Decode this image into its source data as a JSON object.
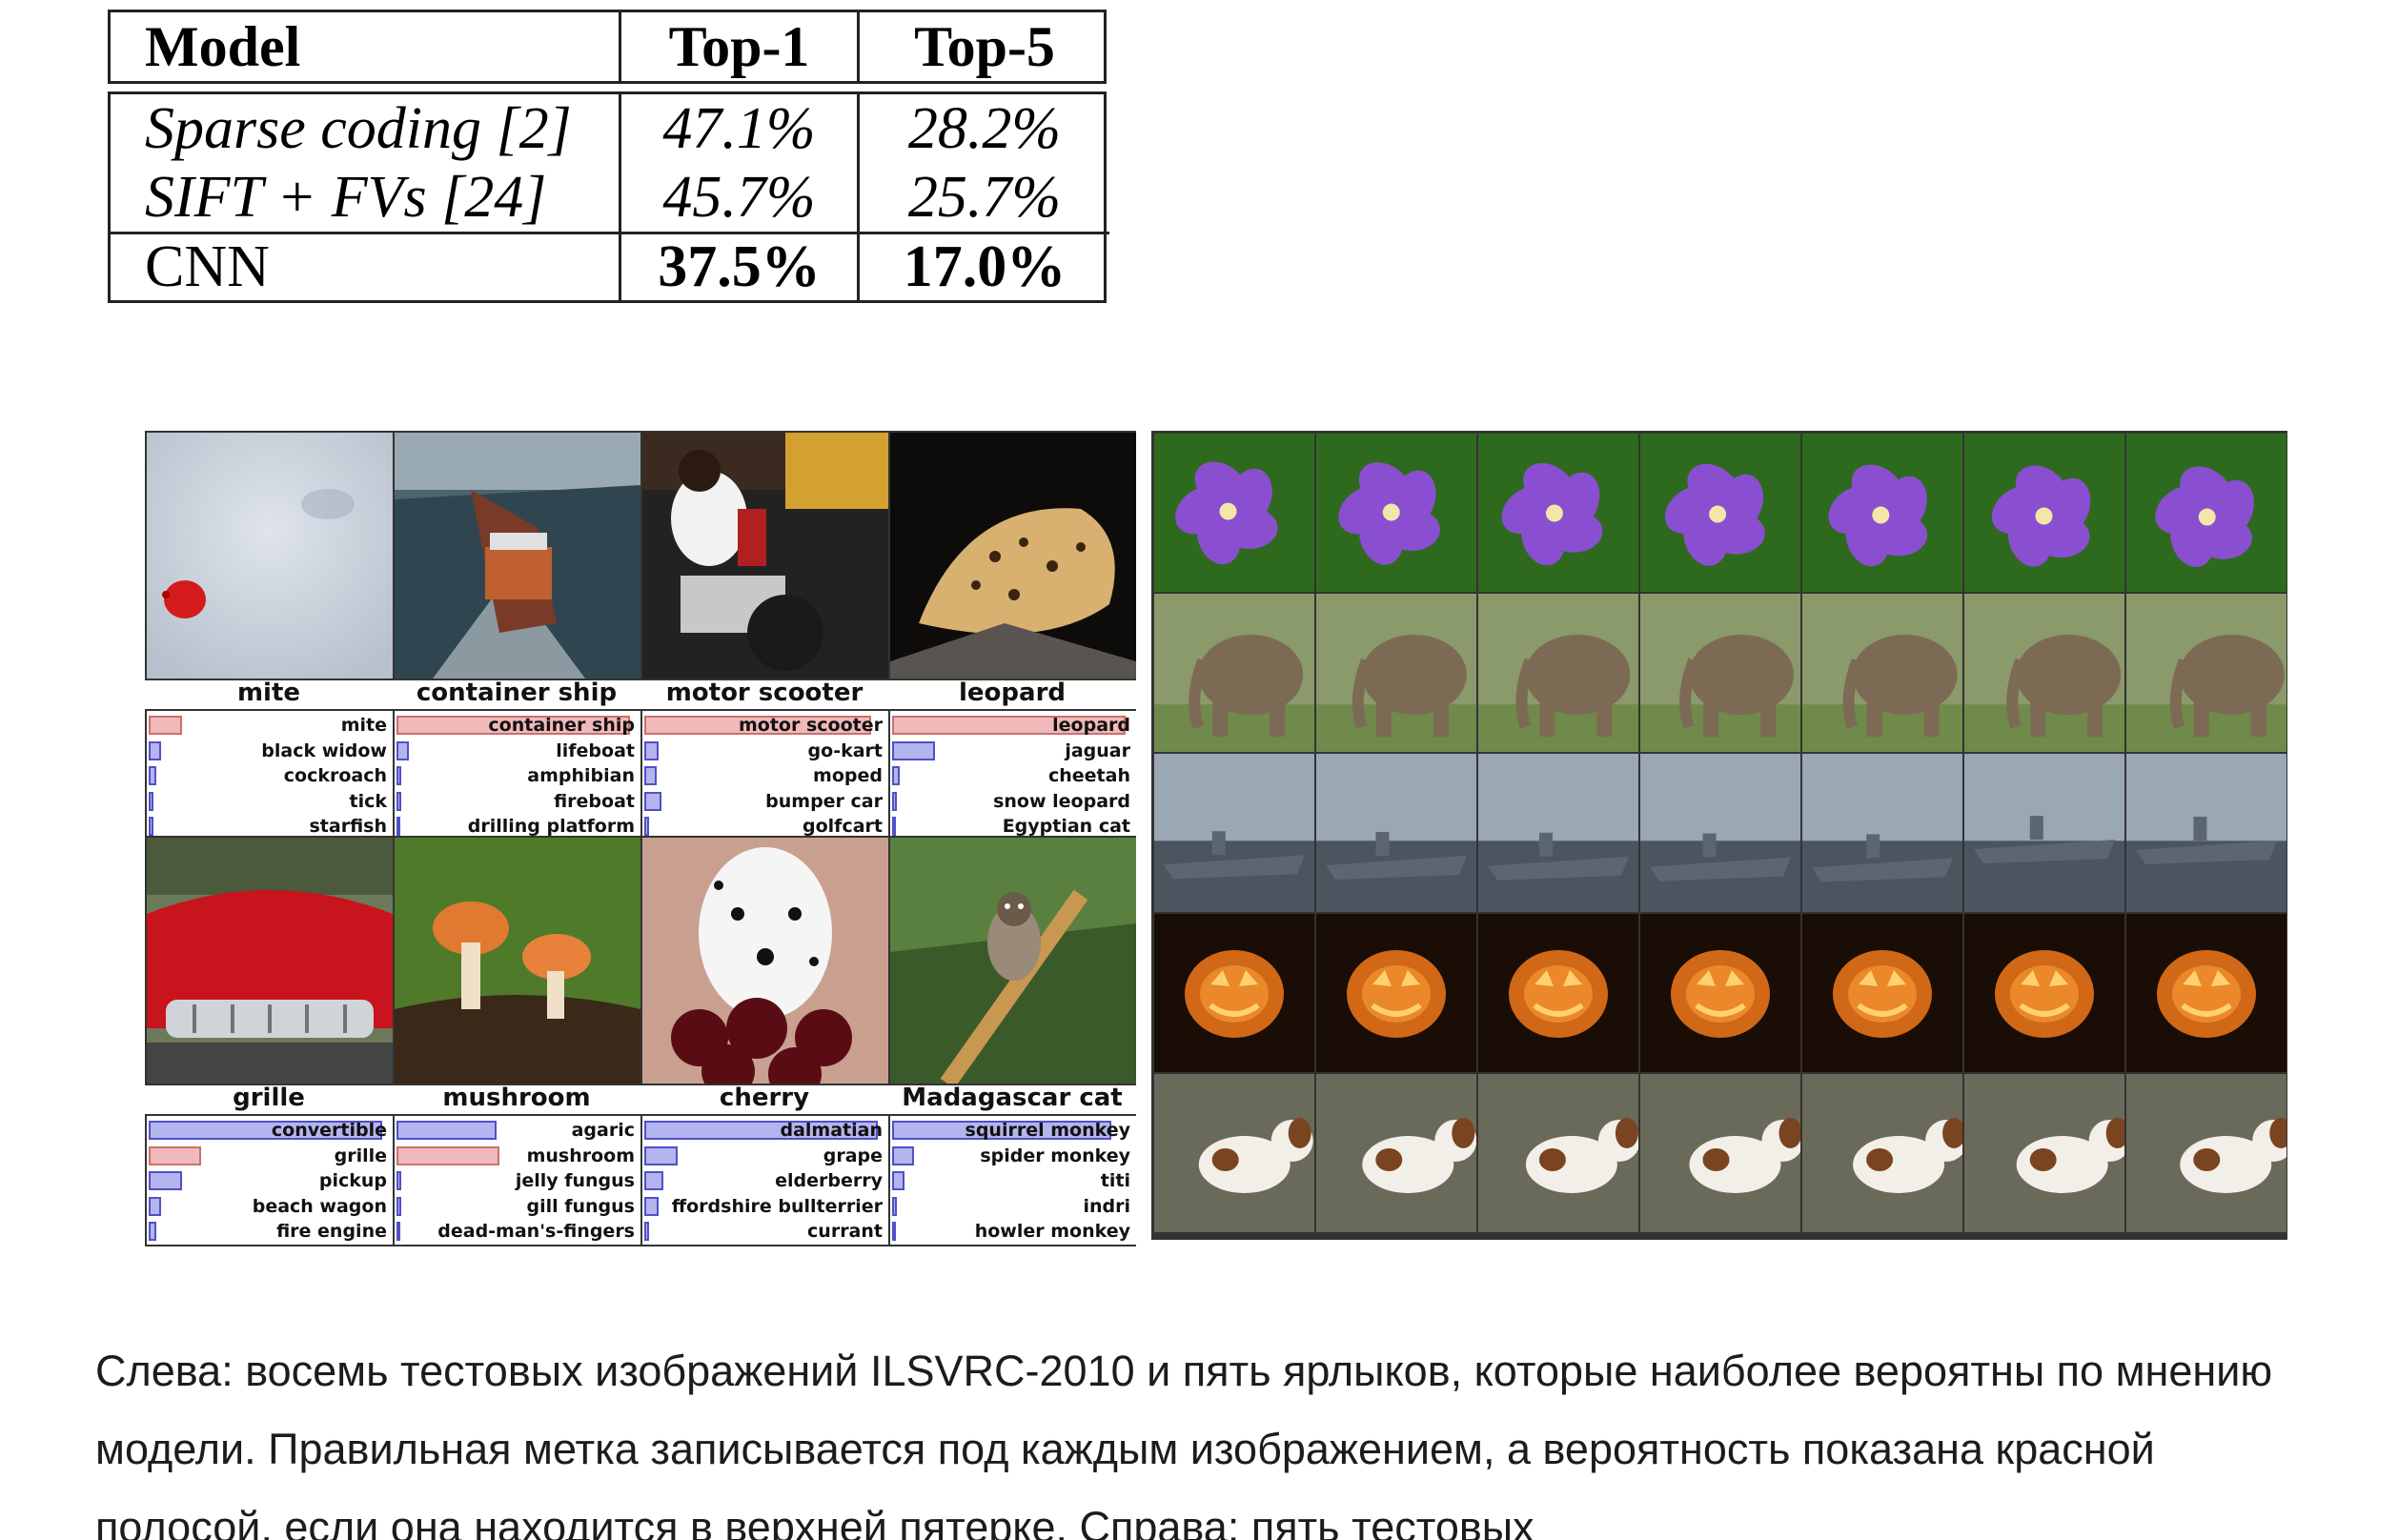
{
  "table": {
    "headers": [
      "Model",
      "Top-1",
      "Top-5"
    ],
    "rows": [
      {
        "model": "Sparse coding [2]",
        "top1": "47.1%",
        "top5": "28.2%"
      },
      {
        "model": "SIFT + FVs [24]",
        "top1": "45.7%",
        "top5": "25.7%"
      },
      {
        "model": "CNN",
        "top1": "37.5%",
        "top5": "17.0%"
      }
    ]
  },
  "left_figure": {
    "top": [
      {
        "label": "mite",
        "predictions": [
          {
            "name": "mite",
            "p": 0.14,
            "correct": true
          },
          {
            "name": "black widow",
            "p": 0.05
          },
          {
            "name": "cockroach",
            "p": 0.03
          },
          {
            "name": "tick",
            "p": 0.02
          },
          {
            "name": "starfish",
            "p": 0.02
          }
        ]
      },
      {
        "label": "container ship",
        "predictions": [
          {
            "name": "container ship",
            "p": 0.98,
            "correct": true
          },
          {
            "name": "lifeboat",
            "p": 0.05
          },
          {
            "name": "amphibian",
            "p": 0.02
          },
          {
            "name": "fireboat",
            "p": 0.02
          },
          {
            "name": "drilling platform",
            "p": 0.01
          }
        ]
      },
      {
        "label": "motor scooter",
        "predictions": [
          {
            "name": "motor scooter",
            "p": 0.95,
            "correct": true
          },
          {
            "name": "go-kart",
            "p": 0.06
          },
          {
            "name": "moped",
            "p": 0.05
          },
          {
            "name": "bumper car",
            "p": 0.07
          },
          {
            "name": "golfcart",
            "p": 0.02
          }
        ]
      },
      {
        "label": "leopard",
        "predictions": [
          {
            "name": "leopard",
            "p": 0.98,
            "correct": true
          },
          {
            "name": "jaguar",
            "p": 0.18
          },
          {
            "name": "cheetah",
            "p": 0.03
          },
          {
            "name": "snow leopard",
            "p": 0.02
          },
          {
            "name": "Egyptian cat",
            "p": 0.01
          }
        ]
      }
    ],
    "bottom": [
      {
        "label": "grille",
        "predictions": [
          {
            "name": "convertible",
            "p": 0.98
          },
          {
            "name": "grille",
            "p": 0.22,
            "correct": true
          },
          {
            "name": "pickup",
            "p": 0.14
          },
          {
            "name": "beach wagon",
            "p": 0.05
          },
          {
            "name": "fire engine",
            "p": 0.03
          }
        ]
      },
      {
        "label": "mushroom",
        "predictions": [
          {
            "name": "agaric",
            "p": 0.42
          },
          {
            "name": "mushroom",
            "p": 0.43,
            "correct": true
          },
          {
            "name": "jelly fungus",
            "p": 0.02
          },
          {
            "name": "gill fungus",
            "p": 0.02
          },
          {
            "name": "dead-man's-fingers",
            "p": 0.01
          }
        ]
      },
      {
        "label": "cherry",
        "predictions": [
          {
            "name": "dalmatian",
            "p": 0.98
          },
          {
            "name": "grape",
            "p": 0.14
          },
          {
            "name": "elderberry",
            "p": 0.08
          },
          {
            "name": "ffordshire bullterrier",
            "p": 0.06
          },
          {
            "name": "currant",
            "p": 0.02
          }
        ]
      },
      {
        "label": "Madagascar cat",
        "predictions": [
          {
            "name": "squirrel monkey",
            "p": 0.92
          },
          {
            "name": "spider monkey",
            "p": 0.09
          },
          {
            "name": "titi",
            "p": 0.05
          },
          {
            "name": "indri",
            "p": 0.02
          },
          {
            "name": "howler monkey",
            "p": 0.01
          }
        ]
      }
    ]
  },
  "right_grid": {
    "rows": [
      "flower",
      "elephant",
      "aircraft-carrier",
      "jack-o-lantern",
      "dog"
    ],
    "colors": {
      "flower": [
        "#8a4fd0",
        "#2e6a1e"
      ],
      "elephant": [
        "#7d6a55",
        "#6f8a4a"
      ],
      "aircraft-carrier": [
        "#5c6670",
        "#9aa8b4"
      ],
      "jack-o-lantern": [
        "#f09030",
        "#1a0d05"
      ],
      "dog": [
        "#f2efe8",
        "#7a4420"
      ]
    }
  },
  "caption": "Слева: восемь тестовых изображений ILSVRC-2010 и пять ярлыков, которые наиболее вероятны по мнению модели. Правильная метка записывается под каждым изображением, а вероятность показана красной полосой, если она находится в верхней пятерке. Справа: пять тестовых"
}
